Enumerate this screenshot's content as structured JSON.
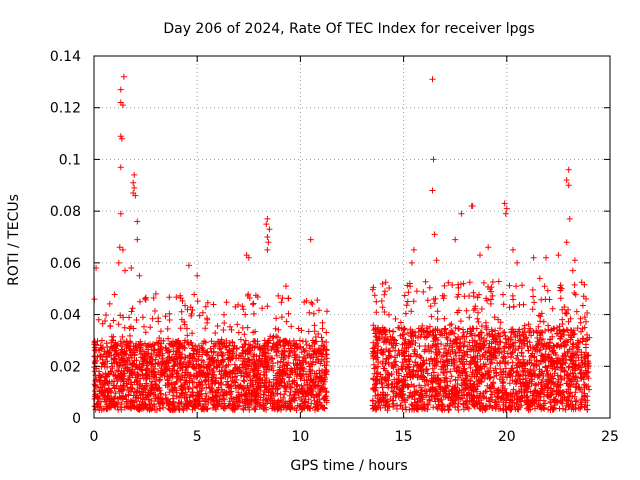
{
  "chart_data": {
    "type": "scatter",
    "title": "Day 206 of 2024, Rate Of TEC Index for receiver lpgs",
    "xlabel": "GPS time / hours",
    "ylabel": "ROTI / TECUs",
    "xlim": [
      0,
      25
    ],
    "ylim": [
      0,
      0.14
    ],
    "x_ticks": [
      0,
      5,
      10,
      15,
      20,
      25
    ],
    "x_tick_labels": [
      "0",
      "5",
      "10",
      "15",
      "20",
      "25"
    ],
    "y_ticks": [
      0,
      0.02,
      0.04,
      0.06,
      0.08,
      0.1,
      0.12,
      0.14
    ],
    "y_tick_labels": [
      "0",
      "0.02",
      "0.04",
      "0.06",
      "0.08",
      "0.1",
      "0.12",
      "0.14"
    ],
    "grid": true,
    "marker": "+",
    "color": "#ff0000",
    "series": [
      {
        "name": "ROTI",
        "segments": [
          {
            "x_start": 0.0,
            "x_end": 11.3,
            "baseline_low": 0.003,
            "baseline_high": 0.03
          },
          {
            "x_start": 13.5,
            "x_end": 24.0,
            "baseline_low": 0.003,
            "baseline_high": 0.035
          }
        ],
        "points": [
          [
            1.45,
            0.132
          ],
          [
            1.3,
            0.127
          ],
          [
            1.3,
            0.122
          ],
          [
            1.4,
            0.121
          ],
          [
            1.3,
            0.109
          ],
          [
            1.35,
            0.108
          ],
          [
            1.3,
            0.097
          ],
          [
            1.3,
            0.079
          ],
          [
            1.95,
            0.094
          ],
          [
            1.9,
            0.091
          ],
          [
            1.95,
            0.089
          ],
          [
            1.9,
            0.087
          ],
          [
            2.0,
            0.086
          ],
          [
            2.1,
            0.076
          ],
          [
            2.1,
            0.069
          ],
          [
            1.25,
            0.066
          ],
          [
            1.4,
            0.065
          ],
          [
            1.2,
            0.06
          ],
          [
            1.5,
            0.057
          ],
          [
            0.1,
            0.058
          ],
          [
            1.8,
            0.058
          ],
          [
            2.2,
            0.055
          ],
          [
            4.6,
            0.059
          ],
          [
            5.0,
            0.055
          ],
          [
            7.4,
            0.063
          ],
          [
            7.5,
            0.062
          ],
          [
            8.4,
            0.077
          ],
          [
            8.35,
            0.075
          ],
          [
            8.5,
            0.073
          ],
          [
            8.4,
            0.07
          ],
          [
            8.45,
            0.068
          ],
          [
            8.4,
            0.065
          ],
          [
            10.5,
            0.069
          ],
          [
            9.3,
            0.051
          ],
          [
            3.0,
            0.048
          ],
          [
            16.4,
            0.131
          ],
          [
            16.45,
            0.1
          ],
          [
            16.4,
            0.088
          ],
          [
            18.3,
            0.082
          ],
          [
            18.35,
            0.082
          ],
          [
            19.9,
            0.083
          ],
          [
            20.0,
            0.081
          ],
          [
            19.95,
            0.079
          ],
          [
            17.8,
            0.079
          ],
          [
            17.5,
            0.069
          ],
          [
            16.5,
            0.071
          ],
          [
            23.0,
            0.096
          ],
          [
            22.9,
            0.092
          ],
          [
            23.0,
            0.09
          ],
          [
            23.05,
            0.077
          ],
          [
            22.9,
            0.068
          ],
          [
            21.9,
            0.062
          ],
          [
            22.5,
            0.063
          ],
          [
            21.3,
            0.062
          ],
          [
            15.5,
            0.065
          ],
          [
            15.4,
            0.06
          ],
          [
            16.6,
            0.061
          ],
          [
            18.7,
            0.063
          ],
          [
            19.1,
            0.066
          ],
          [
            20.3,
            0.065
          ],
          [
            20.5,
            0.06
          ],
          [
            23.2,
            0.057
          ],
          [
            23.3,
            0.061
          ],
          [
            14.1,
            0.049
          ],
          [
            15.3,
            0.052
          ],
          [
            21.6,
            0.054
          ]
        ]
      }
    ]
  }
}
